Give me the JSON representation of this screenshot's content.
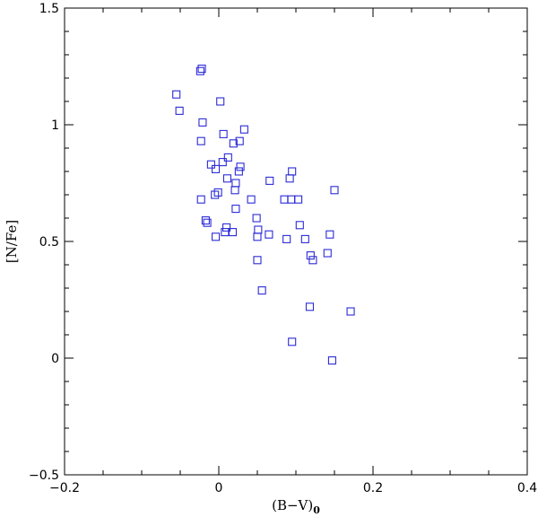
{
  "chart_data": {
    "type": "scatter",
    "title": "",
    "xlabel": "(B−V)",
    "xlabel_subscript": "0",
    "ylabel": "[N/Fe]",
    "xlim": [
      -0.2,
      0.4
    ],
    "ylim": [
      -0.5,
      1.5
    ],
    "x_major_ticks": [
      -0.2,
      0,
      0.2,
      0.4
    ],
    "x_tick_labels": [
      "−0.2",
      "0",
      "0.2",
      "0.4"
    ],
    "y_major_ticks": [
      -0.5,
      0,
      0.5,
      1,
      1.5
    ],
    "y_tick_labels": [
      "−0.5",
      "0",
      "0.5",
      "1",
      "1.5"
    ],
    "x_minor_step": 0.05,
    "y_minor_step": 0.1,
    "grid": false,
    "marker": "open-square",
    "marker_color": "#2b2bd6",
    "series": [
      {
        "points": [
          [
            -0.024,
            1.23
          ],
          [
            -0.022,
            1.24
          ],
          [
            -0.055,
            1.13
          ],
          [
            -0.051,
            1.06
          ],
          [
            0.002,
            1.1
          ],
          [
            -0.021,
            1.01
          ],
          [
            -0.023,
            0.93
          ],
          [
            0.033,
            0.98
          ],
          [
            0.006,
            0.96
          ],
          [
            0.027,
            0.93
          ],
          [
            0.019,
            0.92
          ],
          [
            0.012,
            0.86
          ],
          [
            0.005,
            0.84
          ],
          [
            -0.01,
            0.83
          ],
          [
            -0.004,
            0.81
          ],
          [
            0.028,
            0.82
          ],
          [
            0.026,
            0.8
          ],
          [
            0.011,
            0.77
          ],
          [
            0.022,
            0.75
          ],
          [
            0.066,
            0.76
          ],
          [
            0.092,
            0.77
          ],
          [
            0.095,
            0.8
          ],
          [
            0.021,
            0.72
          ],
          [
            -0.001,
            0.71
          ],
          [
            -0.005,
            0.7
          ],
          [
            0.15,
            0.72
          ],
          [
            -0.023,
            0.68
          ],
          [
            0.042,
            0.68
          ],
          [
            0.085,
            0.68
          ],
          [
            0.094,
            0.68
          ],
          [
            0.103,
            0.68
          ],
          [
            0.022,
            0.64
          ],
          [
            -0.017,
            0.59
          ],
          [
            -0.015,
            0.58
          ],
          [
            0.049,
            0.6
          ],
          [
            0.01,
            0.56
          ],
          [
            0.008,
            0.54
          ],
          [
            0.018,
            0.54
          ],
          [
            0.051,
            0.55
          ],
          [
            0.105,
            0.57
          ],
          [
            -0.004,
            0.52
          ],
          [
            0.05,
            0.52
          ],
          [
            0.065,
            0.53
          ],
          [
            0.088,
            0.51
          ],
          [
            0.112,
            0.51
          ],
          [
            0.144,
            0.53
          ],
          [
            0.119,
            0.44
          ],
          [
            0.122,
            0.42
          ],
          [
            0.141,
            0.45
          ],
          [
            0.05,
            0.42
          ],
          [
            0.056,
            0.29
          ],
          [
            0.118,
            0.22
          ],
          [
            0.171,
            0.2
          ],
          [
            0.095,
            0.07
          ],
          [
            0.147,
            -0.01
          ]
        ]
      }
    ]
  }
}
